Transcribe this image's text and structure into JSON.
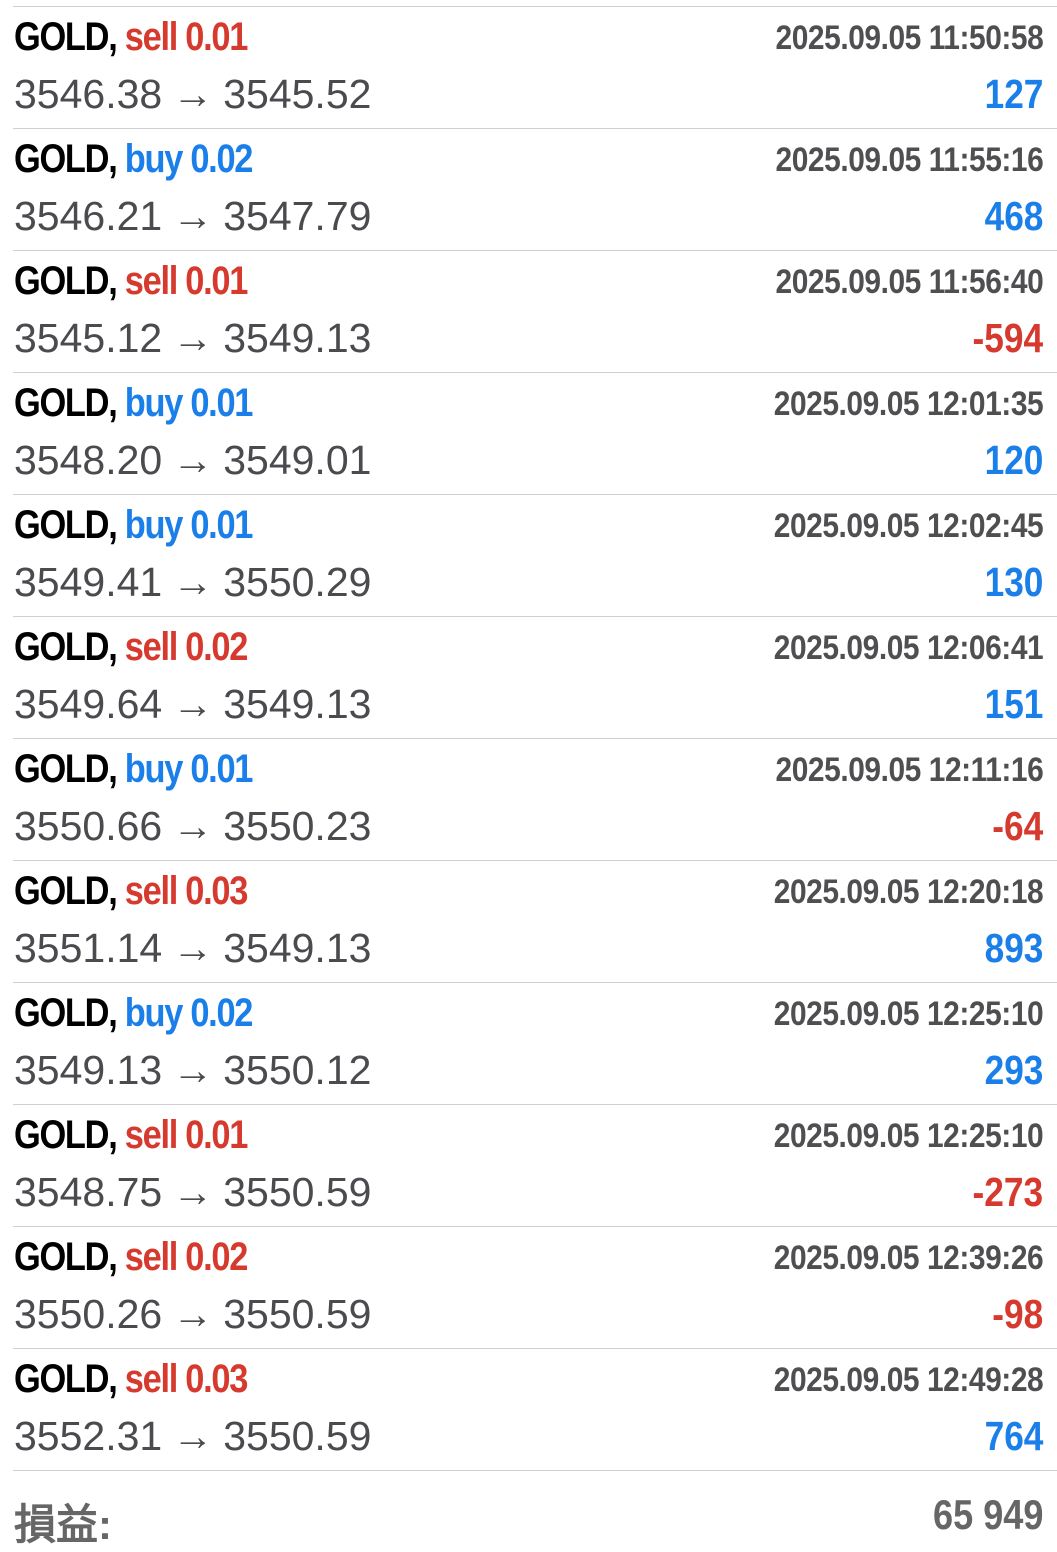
{
  "colors": {
    "sell": "#d63a2f",
    "buy": "#1a7fe8",
    "loss": "#d63a2f",
    "gain": "#1a7fe8"
  },
  "arrow": "→",
  "trades": [
    {
      "symbol": "GOLD,",
      "side": "sell",
      "volume": "0.01",
      "open": "3546.38",
      "close": "3545.52",
      "time": "2025.09.05 11:50:58",
      "profit": "127"
    },
    {
      "symbol": "GOLD,",
      "side": "buy",
      "volume": "0.02",
      "open": "3546.21",
      "close": "3547.79",
      "time": "2025.09.05 11:55:16",
      "profit": "468"
    },
    {
      "symbol": "GOLD,",
      "side": "sell",
      "volume": "0.01",
      "open": "3545.12",
      "close": "3549.13",
      "time": "2025.09.05 11:56:40",
      "profit": "-594"
    },
    {
      "symbol": "GOLD,",
      "side": "buy",
      "volume": "0.01",
      "open": "3548.20",
      "close": "3549.01",
      "time": "2025.09.05 12:01:35",
      "profit": "120"
    },
    {
      "symbol": "GOLD,",
      "side": "buy",
      "volume": "0.01",
      "open": "3549.41",
      "close": "3550.29",
      "time": "2025.09.05 12:02:45",
      "profit": "130"
    },
    {
      "symbol": "GOLD,",
      "side": "sell",
      "volume": "0.02",
      "open": "3549.64",
      "close": "3549.13",
      "time": "2025.09.05 12:06:41",
      "profit": "151"
    },
    {
      "symbol": "GOLD,",
      "side": "buy",
      "volume": "0.01",
      "open": "3550.66",
      "close": "3550.23",
      "time": "2025.09.05 12:11:16",
      "profit": "-64"
    },
    {
      "symbol": "GOLD,",
      "side": "sell",
      "volume": "0.03",
      "open": "3551.14",
      "close": "3549.13",
      "time": "2025.09.05 12:20:18",
      "profit": "893"
    },
    {
      "symbol": "GOLD,",
      "side": "buy",
      "volume": "0.02",
      "open": "3549.13",
      "close": "3550.12",
      "time": "2025.09.05 12:25:10",
      "profit": "293"
    },
    {
      "symbol": "GOLD,",
      "side": "sell",
      "volume": "0.01",
      "open": "3548.75",
      "close": "3550.59",
      "time": "2025.09.05 12:25:10",
      "profit": "-273"
    },
    {
      "symbol": "GOLD,",
      "side": "sell",
      "volume": "0.02",
      "open": "3550.26",
      "close": "3550.59",
      "time": "2025.09.05 12:39:26",
      "profit": "-98"
    },
    {
      "symbol": "GOLD,",
      "side": "sell",
      "volume": "0.03",
      "open": "3552.31",
      "close": "3550.59",
      "time": "2025.09.05 12:49:28",
      "profit": "764"
    }
  ],
  "summary": {
    "label": "損益:",
    "value": "65 949"
  }
}
